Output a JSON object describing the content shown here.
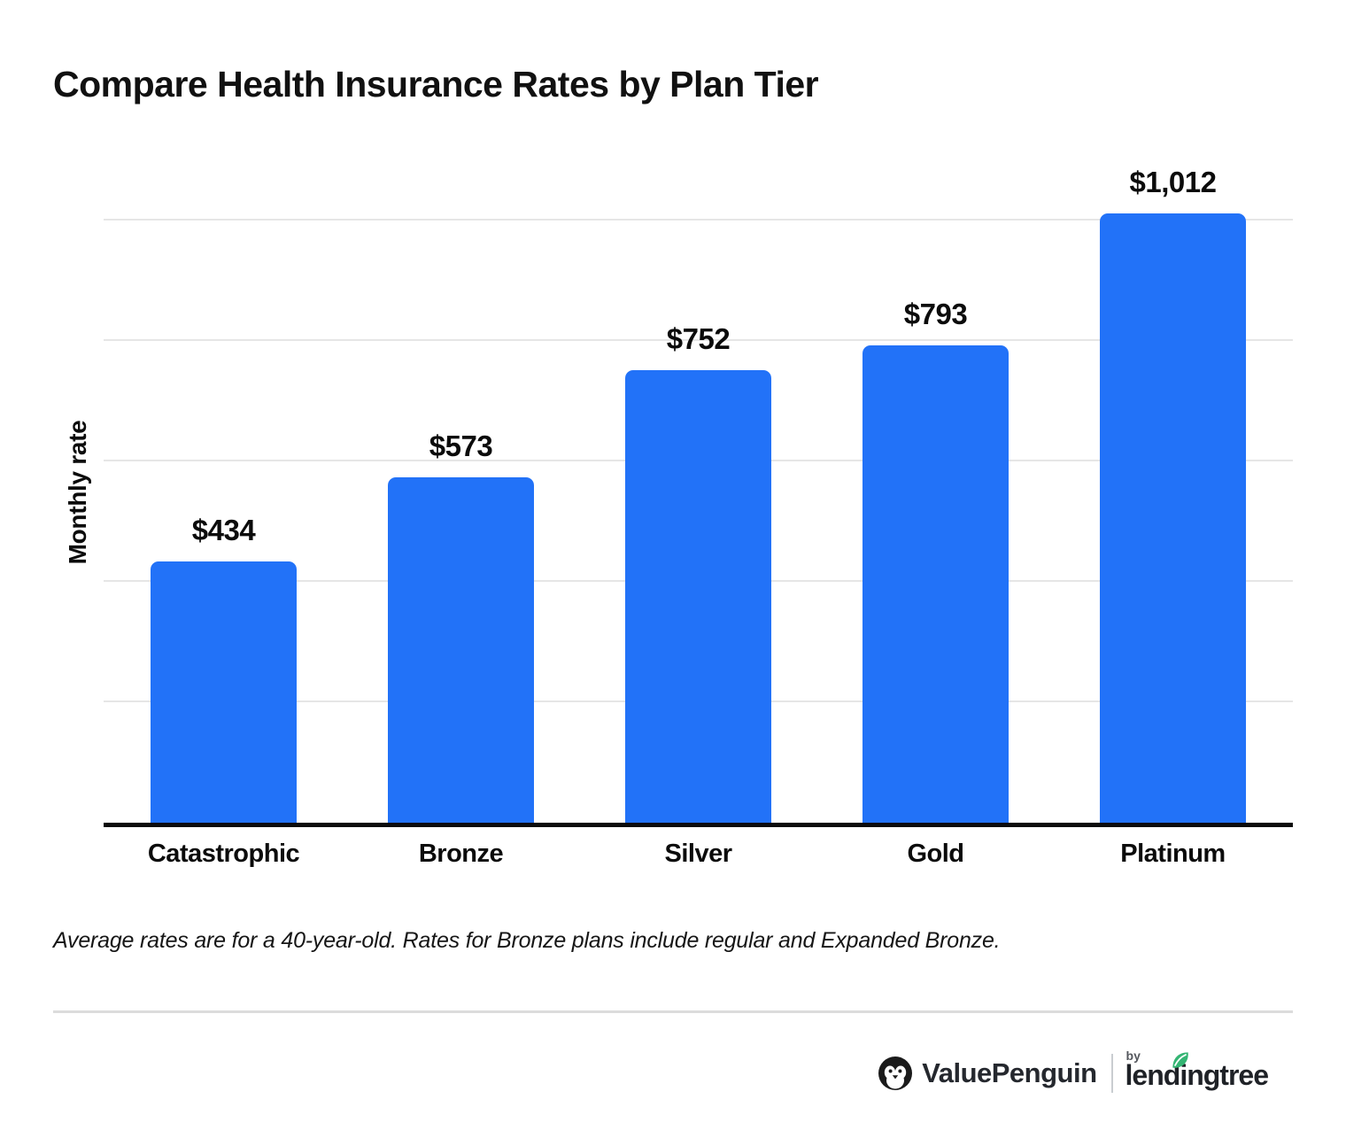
{
  "page": {
    "title": "Compare Health Insurance Rates by Plan Tier",
    "footnote": "Average rates are for a 40-year-old. Rates for Bronze plans include regular and Expanded Bronze."
  },
  "chart_data": {
    "type": "bar",
    "title": "Compare Health Insurance Rates by Plan Tier",
    "categories": [
      "Catastrophic",
      "Bronze",
      "Silver",
      "Gold",
      "Platinum"
    ],
    "values": [
      434,
      573,
      752,
      793,
      1012
    ],
    "value_labels": [
      "$434",
      "$573",
      "$752",
      "$793",
      "$1,012"
    ],
    "xlabel": "",
    "ylabel": "Monthly rate",
    "ylim": [
      0,
      1100
    ],
    "gridline_values": [
      200,
      400,
      600,
      800,
      1000
    ],
    "grid": "horizontal-only, no tick labels",
    "legend_position": "none",
    "bar_color": "#2272F8",
    "gridline_color": "#E6E6E6",
    "axis_line_color": "#0B0B0B",
    "value_label_color": "#0B0B0B"
  },
  "footer": {
    "brand": "ValuePenguin",
    "by_label": "by",
    "partner_brand": "lendingtree",
    "brand_color": "#25282E",
    "partner_color": "#1F2227",
    "leaf_color": "#34B573",
    "penguin_icon_color": "#1B1B1B"
  },
  "icons": {
    "penguin": "penguin-icon",
    "leaf": "leaf-icon"
  }
}
